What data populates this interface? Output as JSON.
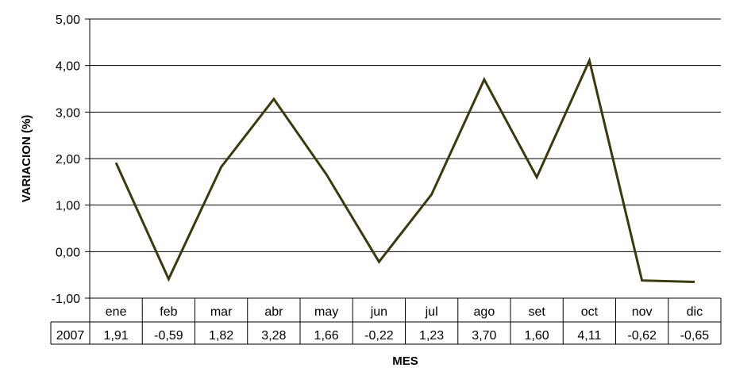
{
  "chart_data": {
    "type": "line",
    "categories": [
      "ene",
      "feb",
      "mar",
      "abr",
      "may",
      "jun",
      "jul",
      "ago",
      "set",
      "oct",
      "nov",
      "dic"
    ],
    "series": [
      {
        "name": "2007",
        "values": [
          1.91,
          -0.59,
          1.82,
          3.28,
          1.66,
          -0.22,
          1.23,
          3.7,
          1.6,
          4.11,
          -0.62,
          -0.65
        ],
        "value_labels": [
          "1,91",
          "-0,59",
          "1,82",
          "3,28",
          "1,66",
          "-0,22",
          "1,23",
          "3,70",
          "1,60",
          "4,11",
          "-0,62",
          "-0,65"
        ]
      }
    ],
    "ylim": [
      -1,
      5
    ],
    "yticks": [
      -1,
      0,
      1,
      2,
      3,
      4,
      5
    ],
    "ytick_labels": [
      "-1,00",
      "0,00",
      "1,00",
      "2,00",
      "3,00",
      "4,00",
      "5,00"
    ],
    "ylabel": "VARIACION (%)",
    "xlabel": "MES",
    "line_color": "#3a3a0c",
    "grid": "horizontal",
    "data_table": true,
    "legend": "none"
  }
}
